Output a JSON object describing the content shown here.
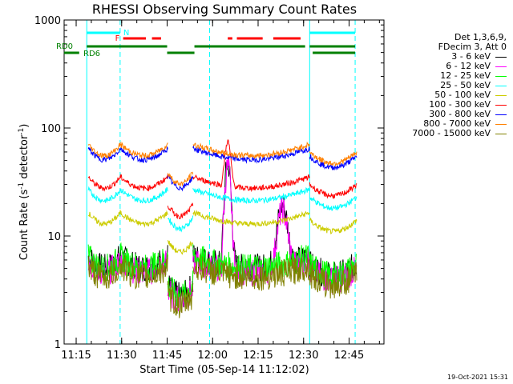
{
  "chart_data": {
    "type": "line",
    "title": "RHESSI Observing Summary Count Rates",
    "xlabel": "Start Time (05-Sep-14 11:12:02)",
    "ylabel_main": "Count Rate (s",
    "ylabel_sup1": "-1",
    "ylabel_mid": " detector",
    "ylabel_sup2": "-1",
    "ylabel_end": ")",
    "yscale": "log",
    "ylim": [
      1,
      1000
    ],
    "xlim_minutes": [
      680,
      777
    ],
    "x_ticks": [
      {
        "t": 675,
        "label": "11:15"
      },
      {
        "t": 690,
        "label": "11:30"
      },
      {
        "t": 705,
        "label": "11:45"
      },
      {
        "t": 720,
        "label": "12:00"
      },
      {
        "t": 735,
        "label": "12:15"
      },
      {
        "t": 750,
        "label": "12:30"
      },
      {
        "t": 765,
        "label": "12:45"
      }
    ],
    "y_ticks": [
      {
        "v": 1,
        "label": "1"
      },
      {
        "v": 10,
        "label": "10"
      },
      {
        "v": 100,
        "label": "100"
      },
      {
        "v": 1000,
        "label": "1000"
      }
    ],
    "legend_header": [
      "Det 1,3,6,9,",
      "FDecim 3, Att 0"
    ],
    "series": [
      {
        "name": "3 - 6 keV",
        "color": "#000000",
        "base": 5.5
      },
      {
        "name": "6 - 12 keV",
        "color": "#ff00ff",
        "base": 5.0
      },
      {
        "name": "12 - 25 keV",
        "color": "#00ff00",
        "base": 5.5
      },
      {
        "name": "25 - 50 keV",
        "color": "#00ffff",
        "base": 23
      },
      {
        "name": "50 - 100 keV",
        "color": "#cccc00",
        "base": 14
      },
      {
        "name": "100 - 300 keV",
        "color": "#ff0000",
        "base": 30
      },
      {
        "name": "300 - 800 keV",
        "color": "#0000ff",
        "base": 55
      },
      {
        "name": "800 - 7000 keV",
        "color": "#ff8000",
        "base": 60
      },
      {
        "name": "7000 - 15000 keV",
        "color": "#808000",
        "base": 4.5
      }
    ],
    "flags": {
      "N": {
        "label": "N",
        "color": "#00ffff"
      },
      "F": {
        "label": "F",
        "color": "#ff0000"
      },
      "RD0": {
        "label": "RD0",
        "color": "#008000"
      },
      "RD6": {
        "label": "RD6",
        "color": "#008000"
      }
    },
    "night_boundaries_minutes": [
      678.5,
      689.5,
      719.0,
      752.0,
      767.0
    ]
  },
  "footer_date": "19-Oct-2021 15:31"
}
